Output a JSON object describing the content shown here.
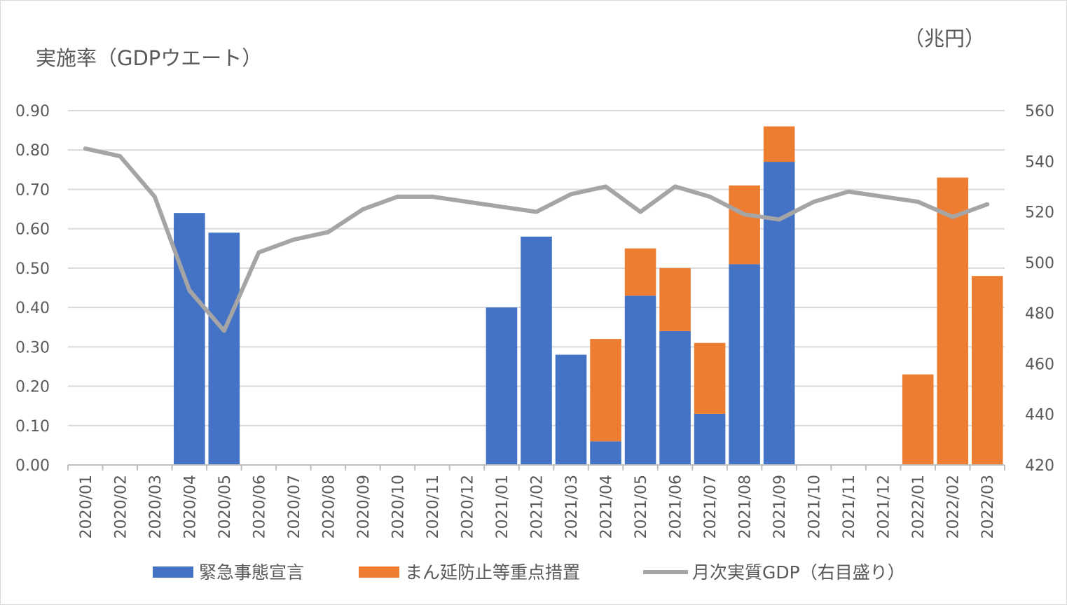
{
  "chart_data": {
    "type": "bar",
    "stacked": true,
    "title": "",
    "y_left_title": "実施率（GDPウエート）",
    "y_right_title": "（兆円）",
    "categories": [
      "2020/01",
      "2020/02",
      "2020/03",
      "2020/04",
      "2020/05",
      "2020/06",
      "2020/07",
      "2020/08",
      "2020/09",
      "2020/10",
      "2020/11",
      "2020/12",
      "2021/01",
      "2021/02",
      "2021/03",
      "2021/04",
      "2021/05",
      "2021/06",
      "2021/07",
      "2021/08",
      "2021/09",
      "2021/10",
      "2021/11",
      "2021/12",
      "2022/01",
      "2022/02",
      "2022/03"
    ],
    "series": [
      {
        "name": "緊急事態宣言",
        "type": "bar",
        "axis": "left",
        "color": "#4472c4",
        "values": [
          0,
          0,
          0,
          0.64,
          0.59,
          0,
          0,
          0,
          0,
          0,
          0,
          0,
          0.4,
          0.58,
          0.28,
          0.06,
          0.43,
          0.34,
          0.13,
          0.51,
          0.77,
          0,
          0,
          0,
          0,
          0,
          0
        ]
      },
      {
        "name": "まん延防止等重点措置",
        "type": "bar",
        "axis": "left",
        "color": "#ed7d31",
        "values": [
          0,
          0,
          0,
          0,
          0,
          0,
          0,
          0,
          0,
          0,
          0,
          0,
          0,
          0,
          0,
          0.26,
          0.12,
          0.16,
          0.18,
          0.2,
          0.09,
          0,
          0,
          0,
          0.23,
          0.73,
          0.48
        ]
      },
      {
        "name": "月次実質GDP（右目盛り）",
        "type": "line",
        "axis": "right",
        "color": "#a5a5a5",
        "values": [
          545,
          542,
          526,
          489,
          473,
          504,
          509,
          512,
          521,
          526,
          526,
          524,
          522,
          520,
          527,
          530,
          520,
          530,
          526,
          519,
          517,
          524,
          528,
          526,
          524,
          518,
          523
        ]
      }
    ],
    "y_left": {
      "min": 0,
      "max": 0.9,
      "step": 0.1,
      "ticks": [
        "0.00",
        "0.10",
        "0.20",
        "0.30",
        "0.40",
        "0.50",
        "0.60",
        "0.70",
        "0.80",
        "0.90"
      ]
    },
    "y_right": {
      "min": 420,
      "max": 560,
      "step": 20,
      "ticks": [
        "420",
        "440",
        "460",
        "480",
        "500",
        "520",
        "540",
        "560"
      ]
    },
    "grid": true,
    "legend_position": "bottom"
  }
}
